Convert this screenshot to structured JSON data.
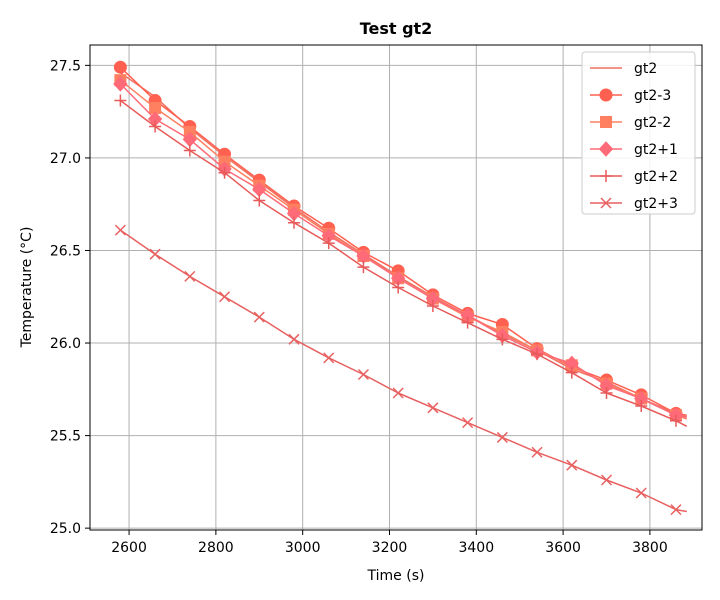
{
  "chart_data": {
    "type": "line",
    "title": "Test gt2",
    "xlabel": "Time (s)",
    "ylabel": "Temperature (°C)",
    "xlim": [
      2510,
      3920
    ],
    "ylim": [
      24.99,
      27.61
    ],
    "xticks": [
      2600,
      2800,
      3000,
      3200,
      3400,
      3600,
      3800
    ],
    "yticks": [
      25.0,
      25.5,
      26.0,
      26.5,
      27.0,
      27.5
    ],
    "grid": true,
    "legend_position": "top-right",
    "x": [
      2580,
      2660,
      2740,
      2820,
      2900,
      2980,
      3060,
      3140,
      3220,
      3300,
      3380,
      3460,
      3540,
      3620,
      3700,
      3780,
      3860,
      3885
    ],
    "series": [
      {
        "name": "gt2",
        "marker": "none",
        "color": "#f07060",
        "values": [
          27.46,
          27.33,
          27.16,
          27.01,
          26.87,
          26.73,
          26.6,
          26.48,
          26.36,
          26.25,
          26.15,
          26.05,
          25.96,
          25.86,
          25.79,
          25.7,
          25.62,
          25.6
        ]
      },
      {
        "name": "gt2-3",
        "marker": "circle",
        "color": "#ff6050",
        "values": [
          27.49,
          27.31,
          27.17,
          27.02,
          26.88,
          26.74,
          26.62,
          26.49,
          26.39,
          26.26,
          26.16,
          26.1,
          25.97,
          25.87,
          25.8,
          25.72,
          25.62,
          25.61
        ]
      },
      {
        "name": "gt2-2",
        "marker": "square",
        "color": "#ff8060",
        "values": [
          27.42,
          27.27,
          27.14,
          26.98,
          26.85,
          26.72,
          26.59,
          26.47,
          26.35,
          26.24,
          26.14,
          26.06,
          25.96,
          25.88,
          25.78,
          25.7,
          25.61,
          25.59
        ]
      },
      {
        "name": "gt2+1",
        "marker": "diamond",
        "color": "#ff6a78",
        "values": [
          27.4,
          27.21,
          27.1,
          26.94,
          26.83,
          26.7,
          26.58,
          26.47,
          26.35,
          26.24,
          26.15,
          26.04,
          25.95,
          25.89,
          25.77,
          25.7,
          25.61,
          25.6
        ]
      },
      {
        "name": "gt2+2",
        "marker": "plus",
        "color": "#e85a5a",
        "values": [
          27.31,
          27.17,
          27.04,
          26.92,
          26.77,
          26.65,
          26.54,
          26.41,
          26.3,
          26.2,
          26.11,
          26.02,
          25.94,
          25.84,
          25.73,
          25.66,
          25.58,
          25.55
        ]
      },
      {
        "name": "gt2+3",
        "marker": "x",
        "color": "#e86060",
        "values": [
          26.61,
          26.48,
          26.36,
          26.25,
          26.14,
          26.02,
          25.92,
          25.83,
          25.73,
          25.65,
          25.57,
          25.49,
          25.41,
          25.34,
          25.26,
          25.19,
          25.1,
          25.09
        ]
      }
    ]
  }
}
